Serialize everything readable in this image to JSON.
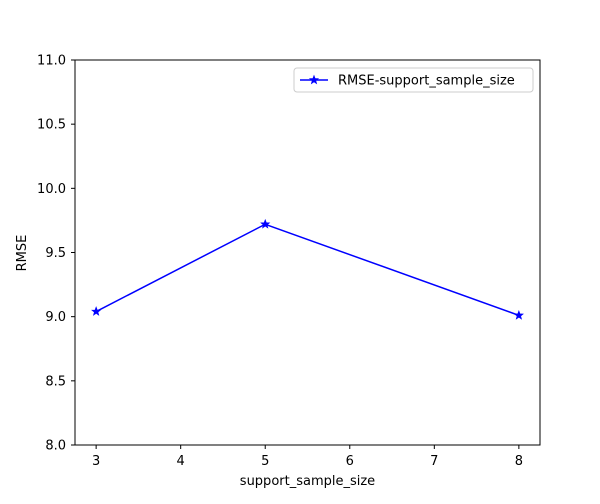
{
  "chart_data": {
    "type": "line",
    "title": "",
    "xlabel": "support_sample_size",
    "ylabel": "RMSE",
    "xlim": [
      2.75,
      8.25
    ],
    "ylim": [
      8.0,
      11.0
    ],
    "xticks": [
      3,
      4,
      5,
      6,
      7,
      8
    ],
    "yticks": [
      8.0,
      8.5,
      9.0,
      9.5,
      10.0,
      10.5,
      11.0
    ],
    "xtick_labels": [
      "3",
      "4",
      "5",
      "6",
      "7",
      "8"
    ],
    "ytick_labels": [
      "8.0",
      "8.5",
      "9.0",
      "9.5",
      "10.0",
      "10.5",
      "11.0"
    ],
    "grid": false,
    "legend_position": "top-right",
    "series": [
      {
        "name": "RMSE-support_sample_size",
        "x": [
          3,
          5,
          8
        ],
        "y": [
          9.04,
          9.72,
          9.01
        ],
        "color": "#0000ff",
        "marker": "star"
      }
    ]
  }
}
